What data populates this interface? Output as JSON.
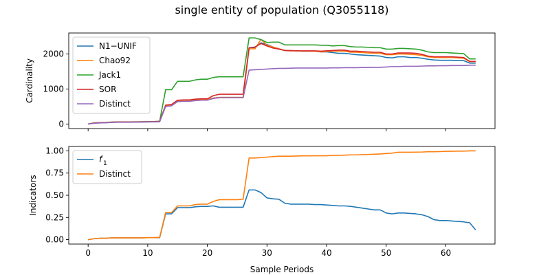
{
  "title": "single entity of population (Q3055118)",
  "colors": {
    "n1_unif": "#1f77b4",
    "chao92": "#ff7f0e",
    "jack1": "#2ca02c",
    "sor": "#d62728",
    "distinct": "#9467bd"
  },
  "chart_data": [
    {
      "type": "line",
      "title": "",
      "xlabel": "",
      "ylabel": "Cardinality",
      "xlim": [
        -3.25,
        68.25
      ],
      "ylim": [
        -130,
        2600
      ],
      "xticks": [
        0,
        10,
        20,
        30,
        40,
        50,
        60
      ],
      "xtick_labels_visible": false,
      "yticks": [
        0,
        1000,
        2000
      ],
      "ytick_labels": [
        "0",
        "1000",
        "2000"
      ],
      "legend_position": "top-left",
      "grid": false,
      "x": [
        0,
        1,
        2,
        3,
        4,
        5,
        6,
        7,
        8,
        9,
        10,
        11,
        12,
        13,
        14,
        15,
        16,
        17,
        18,
        19,
        20,
        21,
        22,
        23,
        24,
        25,
        26,
        27,
        28,
        29,
        30,
        31,
        32,
        33,
        34,
        35,
        36,
        37,
        38,
        39,
        40,
        41,
        42,
        43,
        44,
        45,
        46,
        47,
        48,
        49,
        50,
        51,
        52,
        53,
        54,
        55,
        56,
        57,
        58,
        59,
        60,
        61,
        62,
        63,
        64,
        65
      ],
      "series": [
        {
          "name": "N1−UNIF",
          "color": "#1f77b4",
          "values": [
            0,
            25,
            35,
            40,
            50,
            55,
            55,
            55,
            57,
            60,
            62,
            65,
            70,
            520,
            540,
            660,
            670,
            670,
            690,
            700,
            700,
            740,
            760,
            760,
            760,
            760,
            760,
            2180,
            2180,
            2320,
            2270,
            2200,
            2150,
            2100,
            2100,
            2090,
            2080,
            2080,
            2080,
            2060,
            2060,
            2040,
            2020,
            2020,
            2000,
            1980,
            1970,
            1960,
            1950,
            1940,
            1900,
            1890,
            1920,
            1920,
            1900,
            1900,
            1880,
            1850,
            1830,
            1820,
            1820,
            1820,
            1810,
            1810,
            1740,
            1740
          ]
        },
        {
          "name": "Chao92",
          "color": "#ff7f0e",
          "values": [
            0,
            25,
            35,
            40,
            50,
            55,
            55,
            55,
            57,
            60,
            62,
            65,
            70,
            520,
            540,
            660,
            670,
            670,
            690,
            700,
            700,
            740,
            760,
            760,
            760,
            760,
            760,
            2150,
            2150,
            2420,
            2250,
            2200,
            2150,
            2100,
            2100,
            2090,
            2080,
            2080,
            2080,
            2060,
            2070,
            2080,
            2080,
            2080,
            2050,
            2050,
            2040,
            2030,
            2020,
            2020,
            1980,
            1980,
            2000,
            2000,
            1990,
            1980,
            1960,
            1920,
            1900,
            1900,
            1900,
            1900,
            1890,
            1880,
            1780,
            1780
          ]
        },
        {
          "name": "Jack1",
          "color": "#2ca02c",
          "values": [
            0,
            30,
            40,
            45,
            55,
            60,
            60,
            60,
            62,
            65,
            67,
            70,
            80,
            980,
            980,
            1220,
            1220,
            1220,
            1260,
            1280,
            1280,
            1330,
            1350,
            1350,
            1350,
            1350,
            1350,
            2460,
            2460,
            2410,
            2330,
            2340,
            2340,
            2260,
            2260,
            2260,
            2260,
            2260,
            2260,
            2250,
            2250,
            2230,
            2240,
            2240,
            2210,
            2200,
            2200,
            2190,
            2180,
            2180,
            2140,
            2140,
            2160,
            2160,
            2150,
            2140,
            2110,
            2060,
            2040,
            2040,
            2040,
            2030,
            2020,
            2010,
            1860,
            1860
          ]
        },
        {
          "name": "SOR",
          "color": "#d62728",
          "values": [
            0,
            28,
            38,
            42,
            52,
            57,
            57,
            57,
            59,
            62,
            64,
            67,
            75,
            540,
            560,
            680,
            690,
            690,
            710,
            720,
            720,
            810,
            850,
            850,
            850,
            850,
            850,
            2180,
            2200,
            2300,
            2230,
            2170,
            2140,
            2100,
            2090,
            2090,
            2090,
            2090,
            2090,
            2080,
            2090,
            2100,
            2110,
            2110,
            2080,
            2080,
            2070,
            2060,
            2050,
            2050,
            2000,
            2000,
            2030,
            2030,
            2030,
            2020,
            1990,
            1940,
            1920,
            1920,
            1920,
            1920,
            1910,
            1900,
            1790,
            1790
          ]
        },
        {
          "name": "Distinct",
          "color": "#9467bd",
          "values": [
            0,
            20,
            30,
            35,
            45,
            50,
            50,
            50,
            52,
            55,
            57,
            60,
            62,
            500,
            520,
            640,
            650,
            650,
            670,
            680,
            680,
            730,
            750,
            750,
            750,
            750,
            750,
            1540,
            1550,
            1560,
            1570,
            1580,
            1590,
            1590,
            1595,
            1600,
            1600,
            1600,
            1600,
            1600,
            1600,
            1605,
            1605,
            1610,
            1610,
            1610,
            1615,
            1615,
            1620,
            1620,
            1630,
            1640,
            1640,
            1650,
            1650,
            1650,
            1655,
            1660,
            1660,
            1665,
            1665,
            1670,
            1670,
            1670,
            1680,
            1680
          ]
        }
      ]
    },
    {
      "type": "line",
      "title": "",
      "xlabel": "Sample Periods",
      "ylabel": "Indicators",
      "xlim": [
        -3.25,
        68.25
      ],
      "ylim": [
        -0.05,
        1.05
      ],
      "xticks": [
        0,
        10,
        20,
        30,
        40,
        50,
        60
      ],
      "xtick_labels": [
        "0",
        "10",
        "20",
        "30",
        "40",
        "50",
        "60"
      ],
      "yticks": [
        0,
        0.25,
        0.5,
        0.75,
        1.0
      ],
      "ytick_labels": [
        "0.00",
        "0.25",
        "0.50",
        "0.75",
        "1.00"
      ],
      "legend_position": "top-left",
      "grid": false,
      "x": [
        0,
        1,
        2,
        3,
        4,
        5,
        6,
        7,
        8,
        9,
        10,
        11,
        12,
        13,
        14,
        15,
        16,
        17,
        18,
        19,
        20,
        21,
        22,
        23,
        24,
        25,
        26,
        27,
        28,
        29,
        30,
        31,
        32,
        33,
        34,
        35,
        36,
        37,
        38,
        39,
        40,
        41,
        42,
        43,
        44,
        45,
        46,
        47,
        48,
        49,
        50,
        51,
        52,
        53,
        54,
        55,
        56,
        57,
        58,
        59,
        60,
        61,
        62,
        63,
        64,
        65
      ],
      "series": [
        {
          "name": "f",
          "name_subscript": "1",
          "color": "#1f77b4",
          "values": [
            0,
            0.01,
            0.015,
            0.015,
            0.02,
            0.02,
            0.02,
            0.02,
            0.02,
            0.02,
            0.022,
            0.022,
            0.022,
            0.29,
            0.29,
            0.36,
            0.36,
            0.36,
            0.37,
            0.375,
            0.375,
            0.38,
            0.365,
            0.365,
            0.365,
            0.365,
            0.365,
            0.56,
            0.56,
            0.53,
            0.47,
            0.46,
            0.455,
            0.41,
            0.4,
            0.4,
            0.4,
            0.4,
            0.395,
            0.395,
            0.39,
            0.385,
            0.38,
            0.38,
            0.375,
            0.365,
            0.355,
            0.345,
            0.335,
            0.335,
            0.3,
            0.29,
            0.3,
            0.3,
            0.295,
            0.29,
            0.28,
            0.26,
            0.225,
            0.215,
            0.215,
            0.21,
            0.205,
            0.2,
            0.19,
            0.11
          ]
        },
        {
          "name": "Distinct",
          "color": "#ff7f0e",
          "values": [
            0,
            0.01,
            0.015,
            0.015,
            0.02,
            0.02,
            0.02,
            0.02,
            0.02,
            0.02,
            0.022,
            0.022,
            0.025,
            0.305,
            0.305,
            0.38,
            0.38,
            0.38,
            0.395,
            0.4,
            0.4,
            0.43,
            0.45,
            0.45,
            0.45,
            0.45,
            0.455,
            0.92,
            0.92,
            0.925,
            0.93,
            0.935,
            0.94,
            0.94,
            0.94,
            0.942,
            0.944,
            0.944,
            0.945,
            0.945,
            0.945,
            0.95,
            0.95,
            0.952,
            0.955,
            0.955,
            0.958,
            0.96,
            0.962,
            0.965,
            0.97,
            0.975,
            0.985,
            0.985,
            0.985,
            0.986,
            0.987,
            0.99,
            0.99,
            0.992,
            0.995,
            0.995,
            0.997,
            0.997,
            1.0,
            1.0
          ]
        }
      ]
    }
  ],
  "x_axis_label": "Sample Periods"
}
